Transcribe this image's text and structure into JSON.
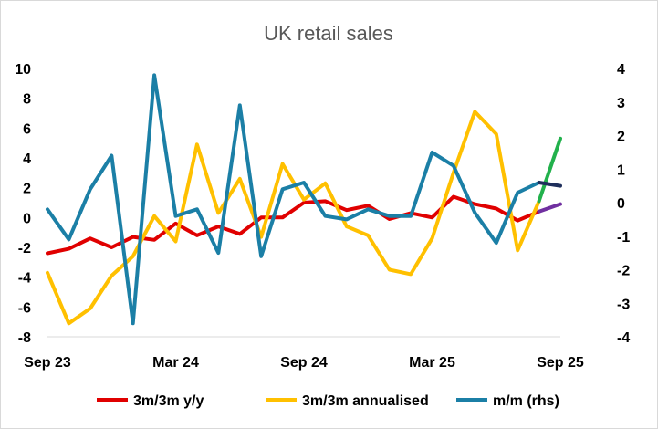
{
  "chart_data": {
    "type": "line",
    "title": "UK retail sales",
    "x_tick_labels": [
      "Sep 23",
      "Mar 24",
      "Sep 24",
      "Mar 25",
      "Sep 25"
    ],
    "x_months": [
      "Sep 23",
      "Oct 23",
      "Nov 23",
      "Dec 23",
      "Jan 24",
      "Feb 24",
      "Mar 24",
      "Apr 24",
      "May 24",
      "Jun 24",
      "Jul 24",
      "Aug 24",
      "Sep 24",
      "Oct 24",
      "Nov 24",
      "Dec 24",
      "Jan 25",
      "Feb 25",
      "Mar 25",
      "Apr 25",
      "May 25",
      "Jun 25",
      "Jul 25",
      "Aug 25",
      "Sep 25"
    ],
    "y_left": {
      "ylim": [
        -8,
        10
      ],
      "ticks": [
        "10",
        "8",
        "6",
        "4",
        "2",
        "0",
        "-2",
        "-4",
        "-6",
        "-8"
      ]
    },
    "y_right": {
      "ylim": [
        -4,
        4
      ],
      "ticks": [
        "4",
        "3",
        "2",
        "1",
        "0",
        "-1",
        "-2",
        "-3",
        "-4"
      ]
    },
    "grid": false,
    "legend_position": "bottom",
    "series": [
      {
        "name": "3m/3m y/y",
        "axis": "left",
        "color": "#e00000",
        "x": [
          "Sep 23",
          "Oct 23",
          "Nov 23",
          "Dec 23",
          "Jan 24",
          "Feb 24",
          "Mar 24",
          "Apr 24",
          "May 24",
          "Jun 24",
          "Jul 24",
          "Aug 24",
          "Sep 24",
          "Oct 24",
          "Nov 24",
          "Dec 24",
          "Jan 25",
          "Feb 25",
          "Mar 25",
          "Apr 25",
          "May 25",
          "Jun 25",
          "Jul 25",
          "Aug 25"
        ],
        "values": [
          -2.4,
          -2.1,
          -1.4,
          -2.0,
          -1.3,
          -1.5,
          -0.4,
          -1.2,
          -0.6,
          -1.1,
          0.0,
          0.0,
          1.0,
          1.1,
          0.5,
          0.8,
          -0.1,
          0.3,
          0.0,
          1.4,
          0.9,
          0.6,
          -0.2,
          0.4
        ]
      },
      {
        "name": "3m/3m annualised",
        "axis": "left",
        "color": "#ffc000",
        "x": [
          "Sep 23",
          "Oct 23",
          "Nov 23",
          "Dec 23",
          "Jan 24",
          "Feb 24",
          "Mar 24",
          "Apr 24",
          "May 24",
          "Jun 24",
          "Jul 24",
          "Aug 24",
          "Sep 24",
          "Oct 24",
          "Nov 24",
          "Dec 24",
          "Jan 25",
          "Feb 25",
          "Mar 25",
          "Apr 25",
          "May 25",
          "Jun 25",
          "Jul 25",
          "Aug 25"
        ],
        "values": [
          -3.7,
          -7.1,
          -6.1,
          -3.9,
          -2.6,
          0.1,
          -1.6,
          4.9,
          0.3,
          2.6,
          -1.3,
          3.6,
          1.2,
          2.3,
          -0.6,
          -1.2,
          -3.5,
          -3.8,
          -1.4,
          3.0,
          7.1,
          5.6,
          -2.2,
          1.1
        ]
      },
      {
        "name": "m/m (rhs)",
        "axis": "right",
        "color": "#1b7fa6",
        "x": [
          "Sep 23",
          "Oct 23",
          "Nov 23",
          "Dec 23",
          "Jan 24",
          "Feb 24",
          "Mar 24",
          "Apr 24",
          "May 24",
          "Jun 24",
          "Jul 24",
          "Aug 24",
          "Sep 24",
          "Oct 24",
          "Nov 24",
          "Dec 24",
          "Jan 25",
          "Feb 25",
          "Mar 25",
          "Apr 25",
          "May 25",
          "Jun 25",
          "Jul 25",
          "Aug 25"
        ],
        "values": [
          -0.2,
          -1.1,
          0.4,
          1.4,
          -3.6,
          3.8,
          -0.4,
          -0.2,
          -1.5,
          2.9,
          -1.6,
          0.4,
          0.6,
          -0.4,
          -0.5,
          -0.2,
          -0.4,
          -0.4,
          1.5,
          1.1,
          -0.3,
          -1.2,
          0.3,
          0.6
        ]
      },
      {
        "name": "",
        "axis": "left",
        "color": "#22b14c",
        "x": [
          "Aug 25",
          "Sep 25"
        ],
        "values": [
          1.1,
          5.3
        ]
      },
      {
        "name": "",
        "axis": "right",
        "color": "#1f2f5c",
        "x": [
          "Aug 25",
          "Sep 25"
        ],
        "values": [
          0.6,
          0.5
        ]
      },
      {
        "name": "",
        "axis": "left",
        "color": "#7030a0",
        "x": [
          "Aug 25",
          "Sep 25"
        ],
        "values": [
          0.4,
          0.9
        ]
      }
    ]
  }
}
